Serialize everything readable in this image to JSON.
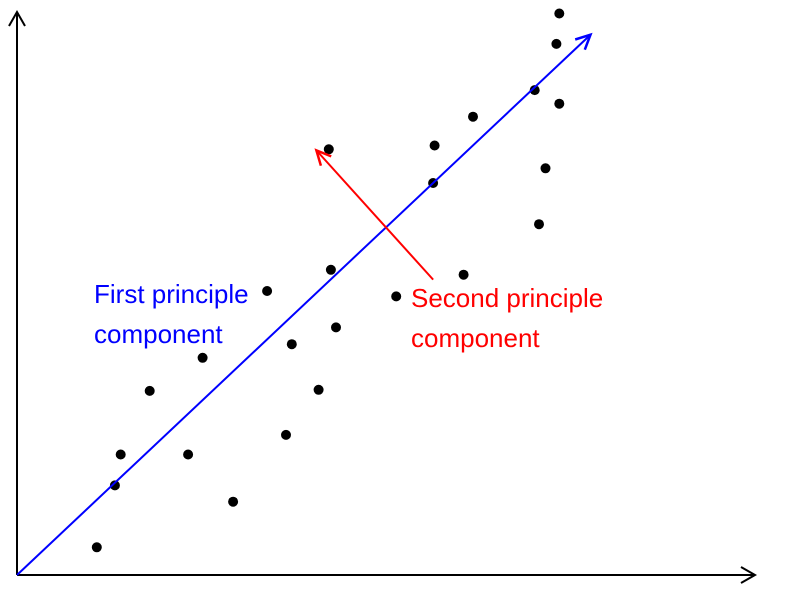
{
  "chart_data": {
    "type": "scatter",
    "title": "",
    "xlabel": "",
    "ylabel": "",
    "xlim": [
      0,
      100
    ],
    "ylim": [
      0,
      100
    ],
    "grid": false,
    "points": [
      {
        "x": 11.0,
        "y": 5.1
      },
      {
        "x": 13.5,
        "y": 16.5
      },
      {
        "x": 14.3,
        "y": 22.2
      },
      {
        "x": 18.3,
        "y": 33.9
      },
      {
        "x": 23.6,
        "y": 22.2
      },
      {
        "x": 25.6,
        "y": 40.0
      },
      {
        "x": 29.8,
        "y": 13.5
      },
      {
        "x": 34.5,
        "y": 52.3
      },
      {
        "x": 37.1,
        "y": 25.8
      },
      {
        "x": 37.9,
        "y": 42.5
      },
      {
        "x": 41.6,
        "y": 34.1
      },
      {
        "x": 43.3,
        "y": 56.2
      },
      {
        "x": 44.0,
        "y": 45.6
      },
      {
        "x": 43.0,
        "y": 78.4
      },
      {
        "x": 52.3,
        "y": 51.3
      },
      {
        "x": 57.4,
        "y": 72.2
      },
      {
        "x": 57.6,
        "y": 79.1
      },
      {
        "x": 61.6,
        "y": 55.3
      },
      {
        "x": 62.9,
        "y": 84.4
      },
      {
        "x": 71.4,
        "y": 89.3
      },
      {
        "x": 72.0,
        "y": 64.6
      },
      {
        "x": 72.9,
        "y": 74.9
      },
      {
        "x": 74.8,
        "y": 86.8
      },
      {
        "x": 74.4,
        "y": 97.8
      },
      {
        "x": 74.8,
        "y": 103.4
      }
    ],
    "point_color": "#000000",
    "vectors": [
      {
        "name": "First principle component",
        "color": "#0000ff",
        "from": [
          0,
          0
        ],
        "to": [
          79.1,
          99.5
        ]
      },
      {
        "name": "Second principle component",
        "color": "#ff0000",
        "from": [
          57.4,
          54.4
        ],
        "to": [
          41.3,
          78.2
        ]
      }
    ]
  },
  "labels": {
    "first_line1": "First principle",
    "first_line2": "component",
    "second_line1": "Second principle",
    "second_line2": "component"
  }
}
